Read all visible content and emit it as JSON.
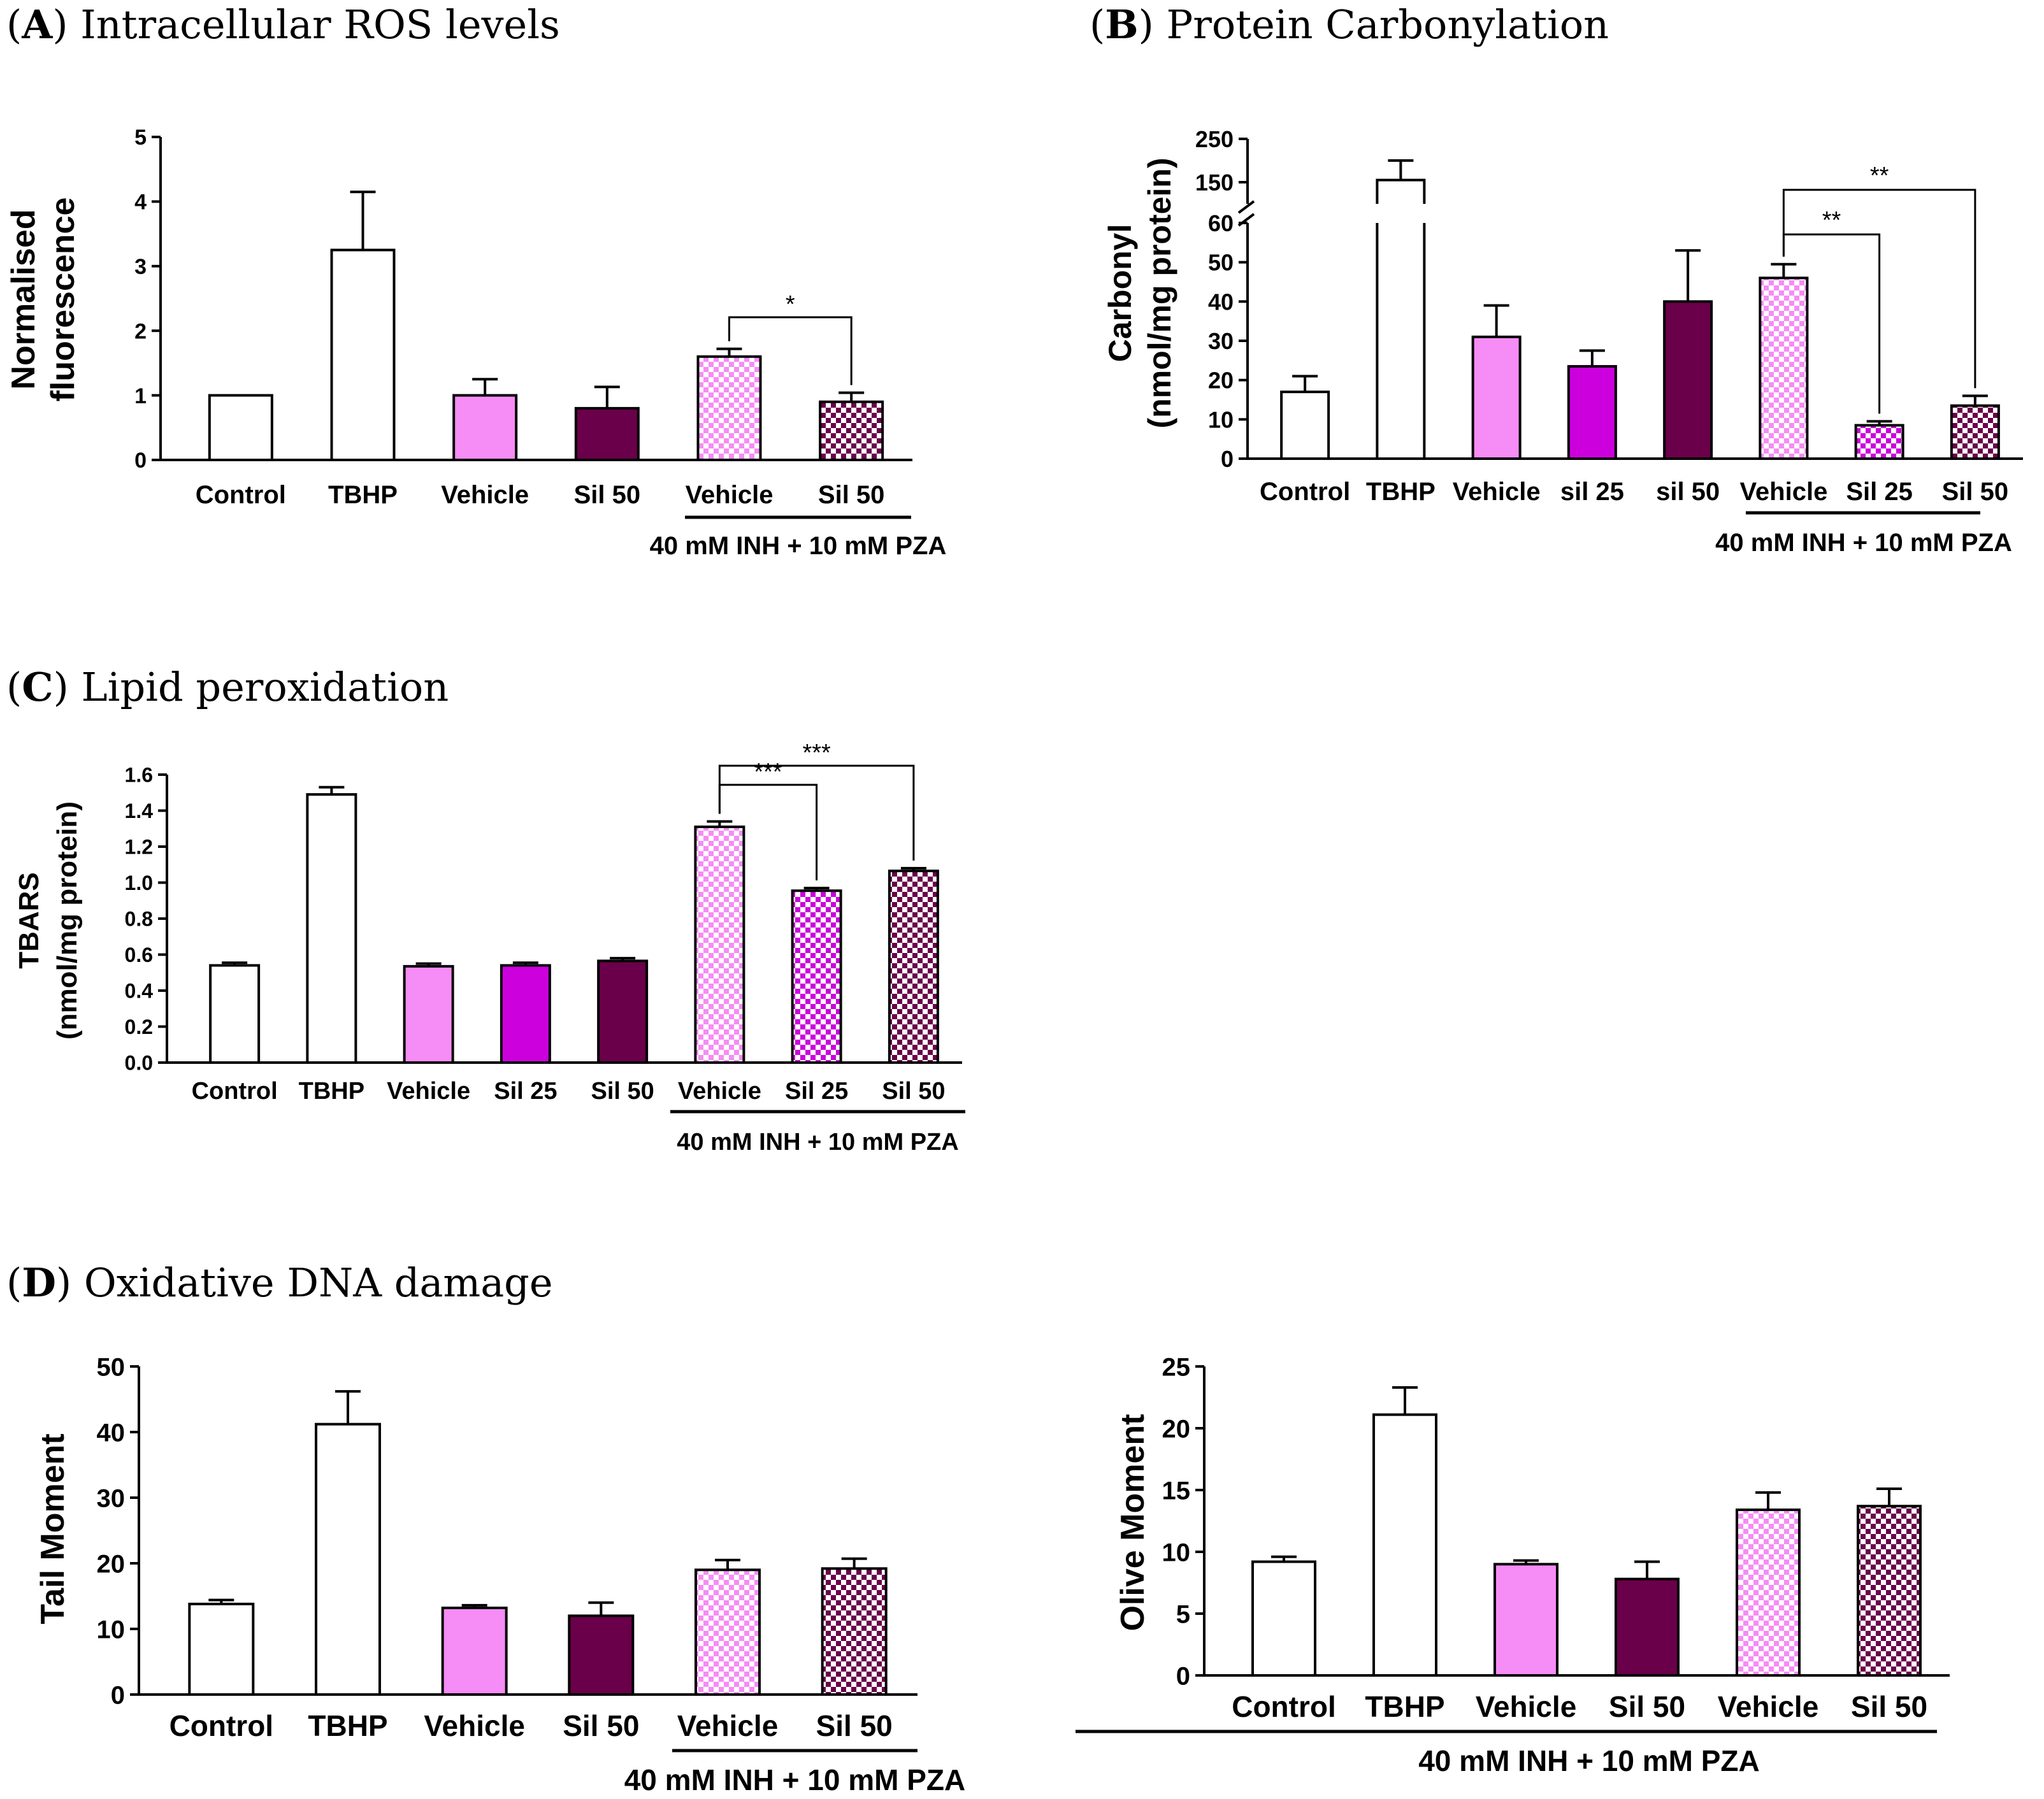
{
  "panels": [
    {
      "letter": "A",
      "title": "Intracellular ROS levels",
      "ylabel": [
        "Normalised",
        "fluorescence"
      ],
      "ylim": [
        0,
        5
      ],
      "yticks": [
        "0",
        "1",
        "2",
        "3",
        "4",
        "5"
      ],
      "group_label": "40 mM INH + 10 mM PZA",
      "bars": [
        {
          "label": "Control",
          "value": 1.0,
          "err": 0.0,
          "fill": "white"
        },
        {
          "label": "TBHP",
          "value": 3.25,
          "err": 0.9,
          "fill": "white"
        },
        {
          "label": "Vehicle",
          "value": 1.0,
          "err": 0.25,
          "fill": "pink"
        },
        {
          "label": "Sil 50",
          "value": 0.8,
          "err": 0.33,
          "fill": "maroon"
        },
        {
          "label": "Vehicle",
          "value": 1.6,
          "err": 0.12,
          "fill": "pinkCheck"
        },
        {
          "label": "Sil 50",
          "value": 0.9,
          "err": 0.14,
          "fill": "maroonCheck"
        }
      ],
      "significance": [
        {
          "from": 4,
          "to": 5,
          "label": "*"
        }
      ]
    },
    {
      "letter": "B",
      "title": "Protein Carbonylation",
      "ylabel": [
        "Carbonyl",
        "(nmol/mg protein)"
      ],
      "ylim_lower": [
        0,
        60
      ],
      "ylim_upper": [
        100,
        250
      ],
      "yticks_lower": [
        "0",
        "10",
        "20",
        "30",
        "40",
        "50",
        "60"
      ],
      "yticks_upper": [
        "150",
        "250"
      ],
      "group_label": "40 mM INH + 10 mM PZA",
      "bars": [
        {
          "label": "Control",
          "value": 17,
          "err": 4,
          "fill": "white"
        },
        {
          "label": "TBHP",
          "value": 155,
          "err": 45,
          "fill": "white"
        },
        {
          "label": "Vehicle",
          "value": 31,
          "err": 8,
          "fill": "pink"
        },
        {
          "label": "sil 25",
          "value": 23.5,
          "err": 4,
          "fill": "purple"
        },
        {
          "label": "sil 50",
          "value": 40,
          "err": 13,
          "fill": "maroon"
        },
        {
          "label": "Vehicle",
          "value": 46,
          "err": 3.5,
          "fill": "pinkCheck"
        },
        {
          "label": "Sil 25",
          "value": 8.5,
          "err": 1,
          "fill": "purpleCheck"
        },
        {
          "label": "Sil 50",
          "value": 13.5,
          "err": 2.5,
          "fill": "maroonCheck"
        }
      ],
      "significance": [
        {
          "from": 5,
          "to": 6,
          "label": "**"
        },
        {
          "from": 5,
          "to": 7,
          "label": "**"
        }
      ]
    },
    {
      "letter": "C",
      "title": "Lipid peroxidation",
      "ylabel": [
        "TBARS",
        "(nmol/mg protein)"
      ],
      "ylim": [
        0,
        1.6
      ],
      "yticks": [
        "0.0",
        "0.2",
        "0.4",
        "0.6",
        "0.8",
        "1.0",
        "1.2",
        "1.4",
        "1.6"
      ],
      "group_label": "40 mM INH + 10 mM PZA",
      "bars": [
        {
          "label": "Control",
          "value": 0.54,
          "err": 0.015,
          "fill": "white"
        },
        {
          "label": "TBHP",
          "value": 1.49,
          "err": 0.04,
          "fill": "white"
        },
        {
          "label": "Vehicle",
          "value": 0.535,
          "err": 0.015,
          "fill": "pink"
        },
        {
          "label": "Sil 25",
          "value": 0.54,
          "err": 0.015,
          "fill": "purple"
        },
        {
          "label": "Sil 50",
          "value": 0.565,
          "err": 0.015,
          "fill": "maroon"
        },
        {
          "label": "Vehicle",
          "value": 1.31,
          "err": 0.03,
          "fill": "pinkCheck"
        },
        {
          "label": "Sil 25",
          "value": 0.955,
          "err": 0.015,
          "fill": "purpleCheck"
        },
        {
          "label": "Sil 50",
          "value": 1.065,
          "err": 0.015,
          "fill": "maroonCheck"
        }
      ],
      "significance": [
        {
          "from": 5,
          "to": 6,
          "label": "***"
        },
        {
          "from": 5,
          "to": 7,
          "label": "***"
        }
      ]
    },
    {
      "letter": "D",
      "title": "Oxidative DNA damage",
      "ylabel": [
        "Tail Moment"
      ],
      "ylim": [
        0,
        50
      ],
      "yticks": [
        "0",
        "10",
        "20",
        "30",
        "40",
        "50"
      ],
      "group_label": "40 mM INH + 10 mM PZA",
      "bars": [
        {
          "label": "Control",
          "value": 13.8,
          "err": 0.6,
          "fill": "white"
        },
        {
          "label": "TBHP",
          "value": 41.2,
          "err": 5,
          "fill": "white"
        },
        {
          "label": "Vehicle",
          "value": 13.2,
          "err": 0.4,
          "fill": "pink"
        },
        {
          "label": "Sil 50",
          "value": 12,
          "err": 2,
          "fill": "maroon"
        },
        {
          "label": "Vehicle",
          "value": 19,
          "err": 1.5,
          "fill": "pinkCheck"
        },
        {
          "label": "Sil 50",
          "value": 19.2,
          "err": 1.5,
          "fill": "maroonCheck"
        }
      ],
      "significance": []
    },
    {
      "letter": "",
      "title": "",
      "ylabel": [
        "Olive Moment"
      ],
      "ylim": [
        0,
        25
      ],
      "yticks": [
        "0",
        "5",
        "10",
        "15",
        "20",
        "25"
      ],
      "group_label": "40 mM INH + 10 mM PZA",
      "bars": [
        {
          "label": "Control",
          "value": 9.2,
          "err": 0.4,
          "fill": "white"
        },
        {
          "label": "TBHP",
          "value": 21.1,
          "err": 2.2,
          "fill": "white"
        },
        {
          "label": "Vehicle",
          "value": 9.0,
          "err": 0.3,
          "fill": "pink"
        },
        {
          "label": "Sil 50",
          "value": 7.8,
          "err": 1.4,
          "fill": "maroon"
        },
        {
          "label": "Vehicle",
          "value": 13.4,
          "err": 1.4,
          "fill": "pinkCheck"
        },
        {
          "label": "Sil 50",
          "value": 13.7,
          "err": 1.4,
          "fill": "maroonCheck"
        }
      ],
      "significance": []
    }
  ],
  "colors": {
    "pink": "#f68cf5",
    "purple": "#cc00dd",
    "maroon": "#6a004a",
    "white": "#ffffff",
    "edge": "#000000"
  },
  "chart_data": [
    {
      "type": "bar",
      "title": "(A) Intracellular ROS levels",
      "ylabel": "Normalised fluorescence",
      "categories": [
        "Control",
        "TBHP",
        "Vehicle",
        "Sil 50",
        "Vehicle",
        "Sil 50"
      ],
      "values": [
        1.0,
        3.25,
        1.0,
        0.8,
        1.6,
        0.9
      ],
      "errors": [
        0.0,
        0.9,
        0.25,
        0.33,
        0.12,
        0.14
      ],
      "ylim": [
        0,
        5
      ]
    },
    {
      "type": "bar",
      "title": "(B) Protein Carbonylation",
      "ylabel": "Carbonyl (nmol/mg protein)",
      "categories": [
        "Control",
        "TBHP",
        "Vehicle",
        "sil 25",
        "sil 50",
        "Vehicle",
        "Sil 25",
        "Sil 50"
      ],
      "values": [
        17,
        155,
        31,
        23.5,
        40,
        46,
        8.5,
        13.5
      ],
      "errors": [
        4,
        45,
        8,
        4,
        13,
        3.5,
        1,
        2.5
      ],
      "ylim": [
        0,
        250
      ]
    },
    {
      "type": "bar",
      "title": "(C) Lipid peroxidation",
      "ylabel": "TBARS (nmol/mg protein)",
      "categories": [
        "Control",
        "TBHP",
        "Vehicle",
        "Sil 25",
        "Sil 50",
        "Vehicle",
        "Sil 25",
        "Sil 50"
      ],
      "values": [
        0.54,
        1.49,
        0.535,
        0.54,
        0.565,
        1.31,
        0.955,
        1.065
      ],
      "errors": [
        0.015,
        0.04,
        0.015,
        0.015,
        0.015,
        0.03,
        0.015,
        0.015
      ],
      "ylim": [
        0,
        1.6
      ]
    },
    {
      "type": "bar",
      "title": "(D) Oxidative DNA damage",
      "ylabel": "Tail Moment",
      "categories": [
        "Control",
        "TBHP",
        "Vehicle",
        "Sil 50",
        "Vehicle",
        "Sil 50"
      ],
      "values": [
        13.8,
        41.2,
        13.2,
        12,
        19,
        19.2
      ],
      "errors": [
        0.6,
        5,
        0.4,
        2,
        1.5,
        1.5
      ],
      "ylim": [
        0,
        50
      ]
    },
    {
      "type": "bar",
      "title": "",
      "ylabel": "Olive Moment",
      "categories": [
        "Control",
        "TBHP",
        "Vehicle",
        "Sil 50",
        "Vehicle",
        "Sil 50"
      ],
      "values": [
        9.2,
        21.1,
        9.0,
        7.8,
        13.4,
        13.7
      ],
      "errors": [
        0.4,
        2.2,
        0.3,
        1.4,
        1.4,
        1.4
      ],
      "ylim": [
        0,
        25
      ]
    }
  ]
}
